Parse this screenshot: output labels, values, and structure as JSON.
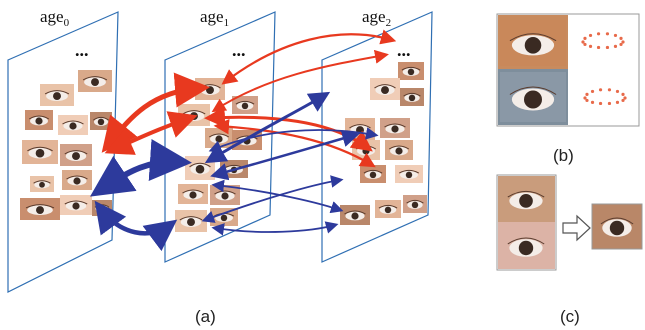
{
  "figure": {
    "panel_a": {
      "planes": [
        {
          "label_base": "age",
          "label_sub": "0",
          "ellipsis": ""
        },
        {
          "label_base": "age",
          "label_sub": "1",
          "ellipsis": "..."
        },
        {
          "label_base": "age",
          "label_sub": "2",
          "ellipsis": "..."
        }
      ],
      "extra_ellipsis": "...",
      "caption": "(a)"
    },
    "panel_b": {
      "caption": "(b)"
    },
    "panel_c": {
      "caption": "(c)"
    },
    "colors": {
      "plane_stroke": "#2f6fb3",
      "arrow_red": "#e8391f",
      "arrow_blue": "#2d3a9c",
      "skin_light": "#e8c2a6",
      "skin_dark": "#b88464",
      "landmark": "#e86a4a"
    }
  }
}
